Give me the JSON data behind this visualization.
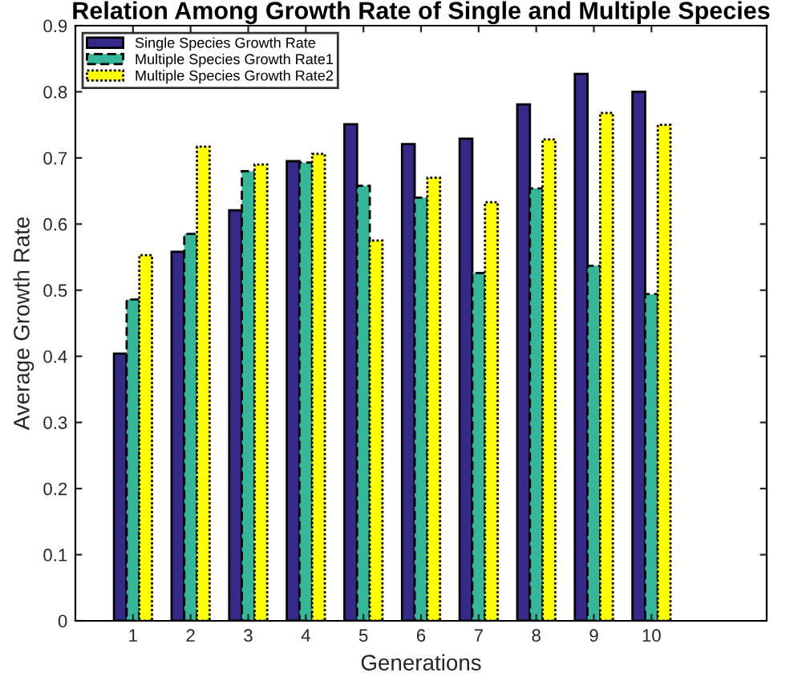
{
  "chart_data": {
    "type": "bar",
    "title": "Relation Among Growth Rate of Single and Multiple Species",
    "xlabel": "Generations",
    "ylabel": "Average Growth Rate",
    "x": [
      1,
      2,
      3,
      4,
      5,
      6,
      7,
      8,
      9,
      10
    ],
    "xlim": [
      0,
      12
    ],
    "xticks": [
      1,
      2,
      3,
      4,
      5,
      6,
      7,
      8,
      9,
      10
    ],
    "ylim": [
      0,
      0.9
    ],
    "yticks": [
      0,
      0.1,
      0.2,
      0.3,
      0.4,
      0.5,
      0.6,
      0.7,
      0.8,
      0.9
    ],
    "grid": false,
    "legend": "top left",
    "series": [
      {
        "name": "Single Species Growth Rate",
        "color": "#352a87",
        "line_style": "solid",
        "values": [
          0.404,
          0.558,
          0.621,
          0.695,
          0.751,
          0.721,
          0.729,
          0.781,
          0.827,
          0.8
        ]
      },
      {
        "name": "Multiple Species Growth Rate1",
        "color": "#35b79a",
        "line_style": "dashed",
        "values": [
          0.486,
          0.585,
          0.68,
          0.693,
          0.658,
          0.64,
          0.526,
          0.654,
          0.537,
          0.494
        ]
      },
      {
        "name": "Multiple Species Growth Rate2",
        "color": "#ffff00",
        "line_style": "dotted",
        "values": [
          0.553,
          0.717,
          0.69,
          0.706,
          0.575,
          0.67,
          0.633,
          0.728,
          0.768,
          0.75
        ]
      }
    ]
  }
}
